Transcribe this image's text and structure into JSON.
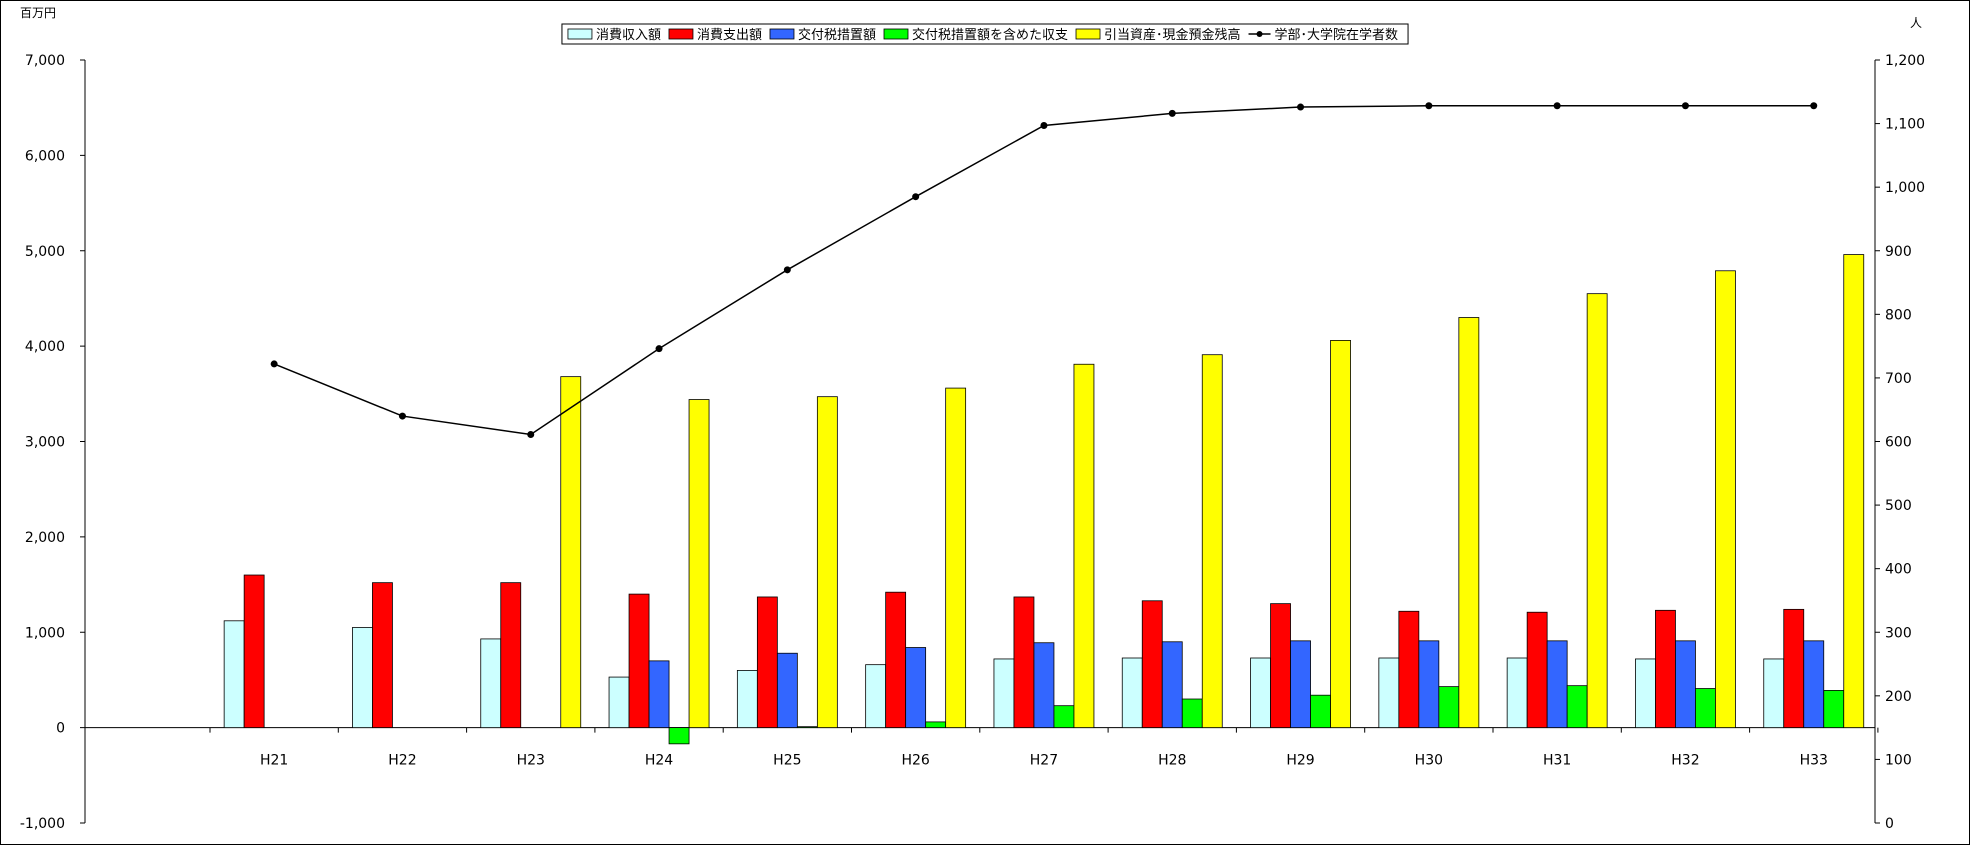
{
  "chart_data": {
    "type": "bar",
    "title": "",
    "y_left_unit": "百万円",
    "y_right_unit": "人",
    "categories": [
      "H21",
      "H22",
      "H23",
      "H24",
      "H25",
      "H26",
      "H27",
      "H28",
      "H29",
      "H30",
      "H31",
      "H32",
      "H33"
    ],
    "y_left_range": [
      -1000,
      7000
    ],
    "y_left_ticks": [
      "-1,000",
      "0",
      "1,000",
      "2,000",
      "3,000",
      "4,000",
      "5,000",
      "6,000",
      "7,000"
    ],
    "y_right_range": [
      0,
      1200
    ],
    "y_right_ticks": [
      "0",
      "100",
      "200",
      "300",
      "400",
      "500",
      "600",
      "700",
      "800",
      "900",
      "1,000",
      "1,100",
      "1,200"
    ],
    "grid": false,
    "legend_position": "top-center",
    "series": [
      {
        "name": "消費収入額",
        "kind": "bar",
        "axis": "left",
        "color": "#ccffff",
        "values": [
          1120,
          1050,
          930,
          530,
          600,
          660,
          720,
          730,
          730,
          730,
          730,
          720,
          720
        ]
      },
      {
        "name": "消費支出額",
        "kind": "bar",
        "axis": "left",
        "color": "#ff0000",
        "values": [
          1600,
          1520,
          1520,
          1400,
          1370,
          1420,
          1370,
          1330,
          1300,
          1220,
          1210,
          1230,
          1240
        ]
      },
      {
        "name": "交付税措置額",
        "kind": "bar",
        "axis": "left",
        "color": "#3366ff",
        "values": [
          0,
          0,
          0,
          700,
          780,
          840,
          890,
          900,
          910,
          910,
          910,
          910,
          910
        ]
      },
      {
        "name": "交付税措置額を含めた収支",
        "kind": "bar",
        "axis": "left",
        "color": "#00ff00",
        "values": [
          0,
          0,
          0,
          -170,
          10,
          60,
          230,
          300,
          340,
          430,
          440,
          410,
          390
        ]
      },
      {
        "name": "引当資産･現金預金残高",
        "kind": "bar",
        "axis": "left",
        "color": "#ffff00",
        "values": [
          0,
          0,
          3680,
          3440,
          3470,
          3560,
          3810,
          3910,
          4060,
          4300,
          4550,
          4790,
          4960
        ]
      },
      {
        "name": "学部･大学院在学者数",
        "kind": "line",
        "axis": "right",
        "color": "#000000",
        "values": [
          722,
          640,
          611,
          746,
          870,
          985,
          1097,
          1116,
          1126,
          1128,
          1128,
          1128,
          1128
        ]
      }
    ]
  }
}
